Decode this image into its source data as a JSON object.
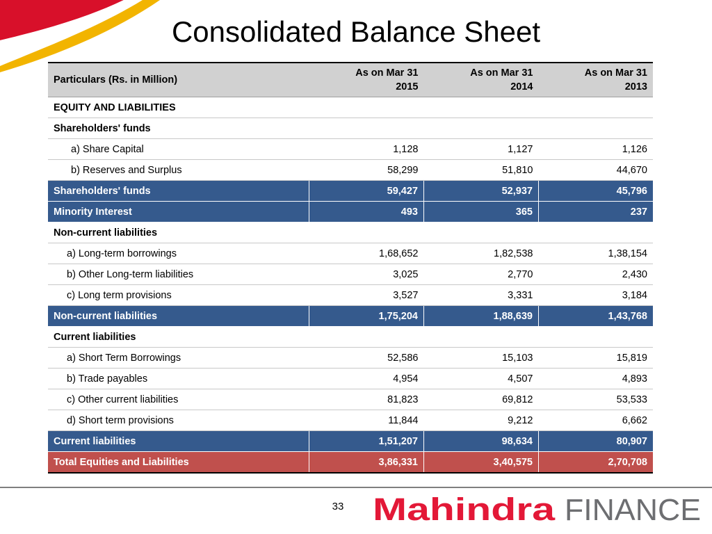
{
  "title": "Consolidated Balance Sheet",
  "table": {
    "header": {
      "particulars": "Particulars (Rs. in Million)",
      "col1_line1": "As on Mar 31",
      "col1_line2": "2015",
      "col2_line1": "As on Mar 31",
      "col2_line2": "2014",
      "col3_line1": "As on Mar 31",
      "col3_line2": "2013"
    },
    "rows": [
      {
        "label": "EQUITY AND LIABILITIES",
        "v1": "",
        "v2": "",
        "v3": ""
      },
      {
        "label": "Shareholders' funds",
        "v1": "",
        "v2": "",
        "v3": ""
      },
      {
        "label": "a) Share Capital",
        "v1": "1,128",
        "v2": "1,127",
        "v3": "1,126"
      },
      {
        "label": "b) Reserves and Surplus",
        "v1": "58,299",
        "v2": "51,810",
        "v3": "44,670"
      },
      {
        "label": "Shareholders' funds",
        "v1": "59,427",
        "v2": "52,937",
        "v3": "45,796"
      },
      {
        "label": "Minority Interest",
        "v1": "493",
        "v2": "365",
        "v3": "237"
      },
      {
        "label": "Non-current liabilities",
        "v1": "",
        "v2": "",
        "v3": ""
      },
      {
        "label": "a) Long-term borrowings",
        "v1": "1,68,652",
        "v2": "1,82,538",
        "v3": "1,38,154"
      },
      {
        "label": "b) Other Long-term liabilities",
        "v1": "3,025",
        "v2": "2,770",
        "v3": "2,430"
      },
      {
        "label": "c) Long term provisions",
        "v1": "3,527",
        "v2": "3,331",
        "v3": "3,184"
      },
      {
        "label": "Non-current liabilities",
        "v1": "1,75,204",
        "v2": "1,88,639",
        "v3": "1,43,768"
      },
      {
        "label": "Current liabilities",
        "v1": "",
        "v2": "",
        "v3": ""
      },
      {
        "label": "a) Short Term Borrowings",
        "v1": "52,586",
        "v2": "15,103",
        "v3": "15,819"
      },
      {
        "label": "b) Trade payables",
        "v1": "4,954",
        "v2": "4,507",
        "v3": "4,893"
      },
      {
        "label": "c) Other current liabilities",
        "v1": "81,823",
        "v2": "69,812",
        "v3": "53,533"
      },
      {
        "label": "d) Short term provisions",
        "v1": "11,844",
        "v2": "9,212",
        "v3": "6,662"
      },
      {
        "label": "Current liabilities",
        "v1": "1,51,207",
        "v2": "98,634",
        "v3": "80,907"
      },
      {
        "label": "Total Equities and Liabilities",
        "v1": "3,86,331",
        "v2": "3,40,575",
        "v3": "2,70,708"
      }
    ]
  },
  "footer": {
    "page_number": "33",
    "logo_brand": "Mahindra",
    "logo_suffix": "FINANCE"
  },
  "colors": {
    "subtotal_row": "#355a8d",
    "total_row": "#c0504d",
    "header_row": "#d1d1d1",
    "brand_red": "#e31837",
    "brand_gray": "#6d6e71"
  }
}
